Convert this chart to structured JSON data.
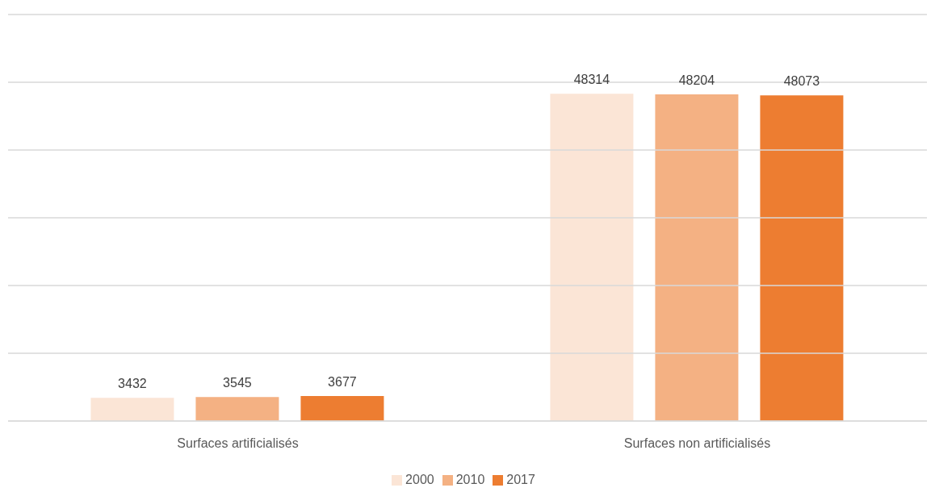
{
  "chart_data": {
    "type": "bar",
    "categories": [
      "Surfaces artificialisés",
      "Surfaces non artificialisés"
    ],
    "series": [
      {
        "name": "2000",
        "color": "#fbe5d6",
        "values": [
          3432,
          48314
        ]
      },
      {
        "name": "2010",
        "color": "#f4b183",
        "values": [
          3545,
          48204
        ]
      },
      {
        "name": "2017",
        "color": "#ed7d31",
        "values": [
          3677,
          48073
        ]
      }
    ],
    "ylim": [
      0,
      60000
    ],
    "yticks": [
      {
        "value": 0,
        "label": null
      },
      {
        "value": 10000,
        "label": null
      },
      {
        "value": 20000,
        "label": null
      },
      {
        "value": 30000,
        "label": null
      },
      {
        "value": 40000,
        "label": null
      },
      {
        "value": 50000,
        "label": null
      },
      {
        "value": 60000,
        "label": null
      }
    ],
    "tick_labels": "x",
    "grid": "y",
    "legend": "bottom",
    "data_labels": true
  }
}
